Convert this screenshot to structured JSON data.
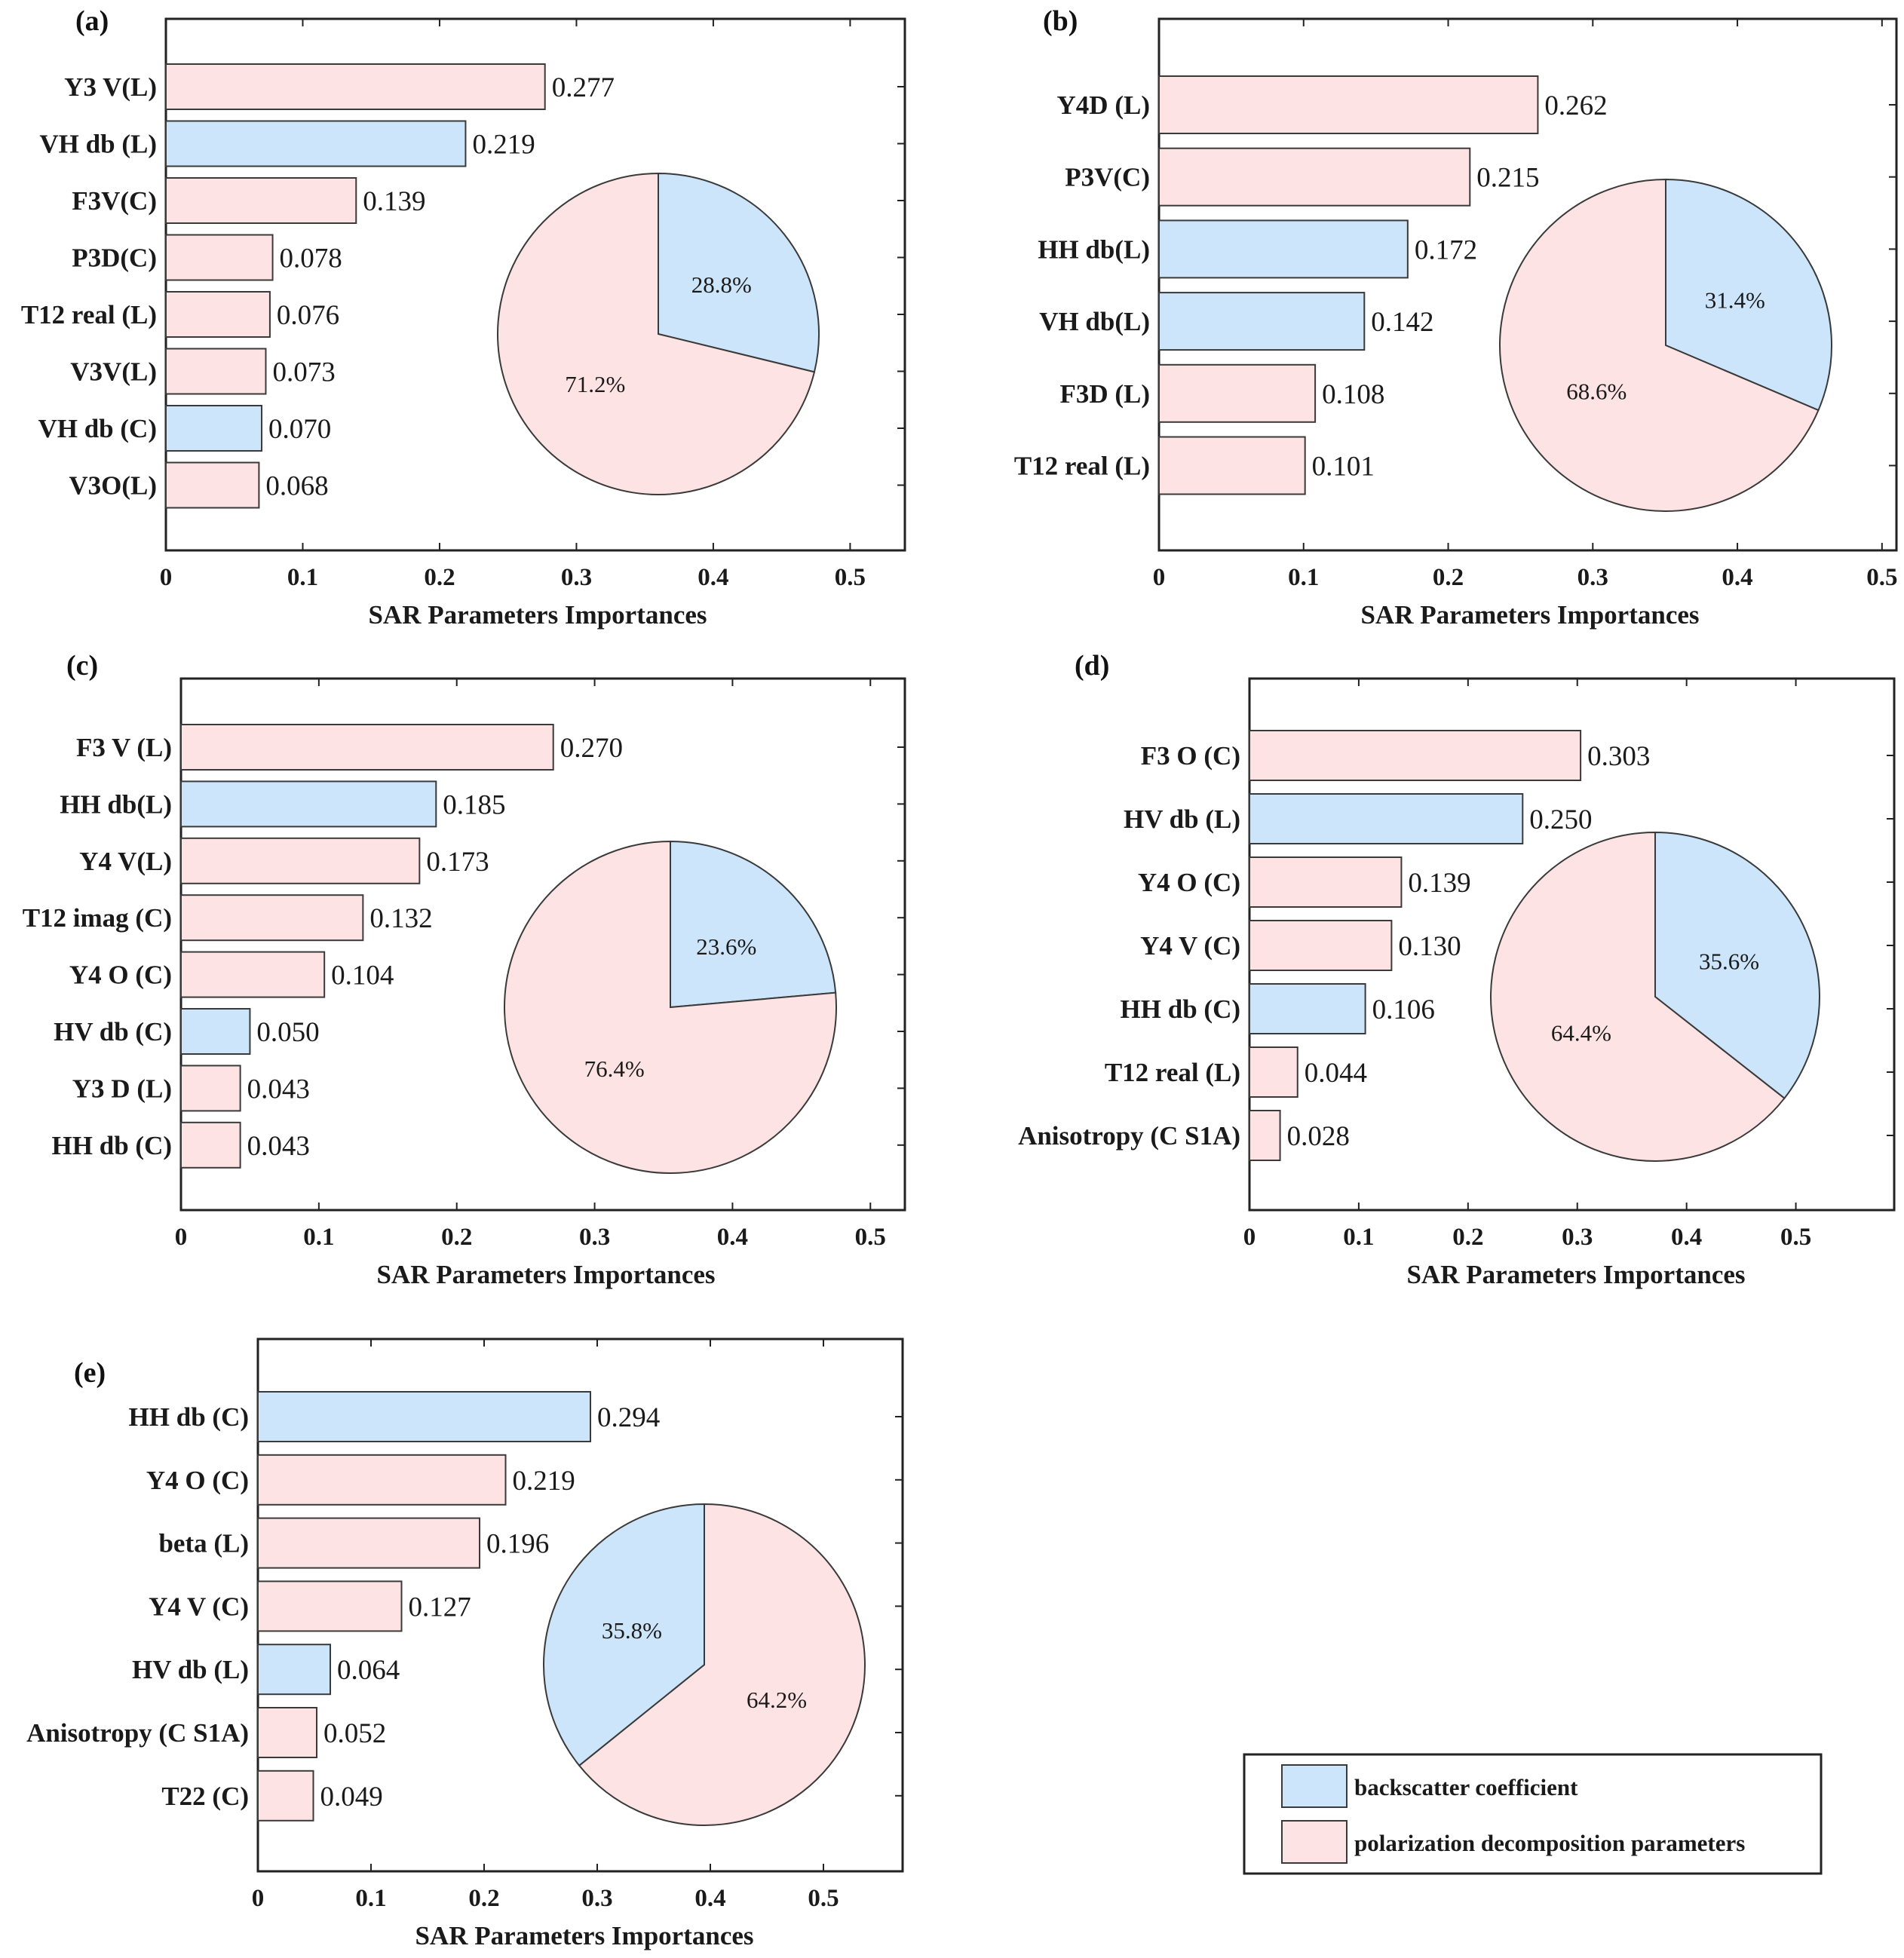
{
  "colors": {
    "backscatter": "#cce5fa",
    "polarization": "#fde3e3",
    "stroke": "#3a3a3a"
  },
  "legend": {
    "backscatter_label": "backscatter coefficient",
    "polarization_label": "polarization decomposition parameters"
  },
  "chart_data": [
    {
      "type": "bar",
      "panel": "(a)",
      "xlabel": "SAR Parameters Importances",
      "xlim": [
        0,
        0.54
      ],
      "xticks": [
        "0",
        "0.1",
        "0.2",
        "0.3",
        "0.4",
        "0.5"
      ],
      "bars": [
        {
          "label": "Y3 V(L)",
          "value": 0.277,
          "value_label": "0.277",
          "category": "polarization"
        },
        {
          "label": "VH db (L)",
          "value": 0.219,
          "value_label": "0.219",
          "category": "backscatter"
        },
        {
          "label": "F3V(C)",
          "value": 0.139,
          "value_label": "0.139",
          "category": "polarization"
        },
        {
          "label": "P3D(C)",
          "value": 0.078,
          "value_label": "0.078",
          "category": "polarization"
        },
        {
          "label": "T12 real (L)",
          "value": 0.076,
          "value_label": "0.076",
          "category": "polarization"
        },
        {
          "label": "V3V(L)",
          "value": 0.073,
          "value_label": "0.073",
          "category": "polarization"
        },
        {
          "label": "VH db (C)",
          "value": 0.07,
          "value_label": "0.070",
          "category": "backscatter"
        },
        {
          "label": "V3O(L)",
          "value": 0.068,
          "value_label": "0.068",
          "category": "polarization"
        }
      ],
      "pie": [
        {
          "category": "backscatter",
          "value": 28.8,
          "label": "28.8%"
        },
        {
          "category": "polarization",
          "value": 71.2,
          "label": "71.2%"
        }
      ]
    },
    {
      "type": "bar",
      "panel": "(b)",
      "xlabel": "SAR Parameters Importances",
      "xlim": [
        0,
        0.51
      ],
      "xticks": [
        "0",
        "0.1",
        "0.2",
        "0.3",
        "0.4",
        "0.5"
      ],
      "bars": [
        {
          "label": "Y4D (L)",
          "value": 0.262,
          "value_label": "0.262",
          "category": "polarization"
        },
        {
          "label": "P3V(C)",
          "value": 0.215,
          "value_label": "0.215",
          "category": "polarization"
        },
        {
          "label": "HH db(L)",
          "value": 0.172,
          "value_label": "0.172",
          "category": "backscatter"
        },
        {
          "label": "VH db(L)",
          "value": 0.142,
          "value_label": "0.142",
          "category": "backscatter"
        },
        {
          "label": "F3D (L)",
          "value": 0.108,
          "value_label": "0.108",
          "category": "polarization"
        },
        {
          "label": "T12 real (L)",
          "value": 0.101,
          "value_label": "0.101",
          "category": "polarization"
        }
      ],
      "pie": [
        {
          "category": "backscatter",
          "value": 31.4,
          "label": "31.4%"
        },
        {
          "category": "polarization",
          "value": 68.6,
          "label": "68.6%"
        }
      ]
    },
    {
      "type": "bar",
      "panel": "(c)",
      "xlabel": "SAR Parameters Importances",
      "xlim": [
        0,
        0.525
      ],
      "xticks": [
        "0",
        "0.1",
        "0.2",
        "0.3",
        "0.4",
        "0.5"
      ],
      "bars": [
        {
          "label": "F3 V (L)",
          "value": 0.27,
          "value_label": "0.270",
          "category": "polarization"
        },
        {
          "label": "HH db(L)",
          "value": 0.185,
          "value_label": "0.185",
          "category": "backscatter"
        },
        {
          "label": "Y4 V(L)",
          "value": 0.173,
          "value_label": "0.173",
          "category": "polarization"
        },
        {
          "label": "T12 imag (C)",
          "value": 0.132,
          "value_label": "0.132",
          "category": "polarization"
        },
        {
          "label": "Y4 O (C)",
          "value": 0.104,
          "value_label": "0.104",
          "category": "polarization"
        },
        {
          "label": "HV db (C)",
          "value": 0.05,
          "value_label": "0.050",
          "category": "backscatter"
        },
        {
          "label": "Y3 D (L)",
          "value": 0.043,
          "value_label": "0.043",
          "category": "polarization"
        },
        {
          "label": "HH db (C)",
          "value": 0.043,
          "value_label": "0.043",
          "category": "polarization"
        }
      ],
      "pie": [
        {
          "category": "backscatter",
          "value": 23.6,
          "label": "23.6%"
        },
        {
          "category": "polarization",
          "value": 76.4,
          "label": "76.4%"
        }
      ]
    },
    {
      "type": "bar",
      "panel": "(d)",
      "xlabel": "SAR Parameters Importances",
      "xlim": [
        0,
        0.59
      ],
      "xticks": [
        "0",
        "0.1",
        "0.2",
        "0.3",
        "0.4",
        "0.5"
      ],
      "bars": [
        {
          "label": "F3 O (C)",
          "value": 0.303,
          "value_label": "0.303",
          "category": "polarization"
        },
        {
          "label": "HV db (L)",
          "value": 0.25,
          "value_label": "0.250",
          "category": "backscatter"
        },
        {
          "label": "Y4 O (C)",
          "value": 0.139,
          "value_label": "0.139",
          "category": "polarization"
        },
        {
          "label": "Y4 V (C)",
          "value": 0.13,
          "value_label": "0.130",
          "category": "polarization"
        },
        {
          "label": "HH db (C)",
          "value": 0.106,
          "value_label": "0.106",
          "category": "backscatter"
        },
        {
          "label": "T12 real (L)",
          "value": 0.044,
          "value_label": "0.044",
          "category": "polarization"
        },
        {
          "label": "Anisotropy (C S1A)",
          "value": 0.028,
          "value_label": "0.028",
          "category": "polarization"
        }
      ],
      "pie": [
        {
          "category": "backscatter",
          "value": 35.6,
          "label": "35.6%"
        },
        {
          "category": "polarization",
          "value": 64.4,
          "label": "64.4%"
        }
      ]
    },
    {
      "type": "bar",
      "panel": "(e)",
      "xlabel": "SAR Parameters Importances",
      "xlim": [
        0,
        0.57
      ],
      "xticks": [
        "0",
        "0.1",
        "0.2",
        "0.3",
        "0.4",
        "0.5"
      ],
      "bars": [
        {
          "label": "HH db  (C)",
          "value": 0.294,
          "value_label": "0.294",
          "category": "backscatter"
        },
        {
          "label": "Y4 O (C)",
          "value": 0.219,
          "value_label": "0.219",
          "category": "polarization"
        },
        {
          "label": "beta (L)",
          "value": 0.196,
          "value_label": "0.196",
          "category": "polarization"
        },
        {
          "label": "Y4 V (C)",
          "value": 0.127,
          "value_label": "0.127",
          "category": "polarization"
        },
        {
          "label": "HV db (L)",
          "value": 0.064,
          "value_label": "0.064",
          "category": "backscatter"
        },
        {
          "label": "Anisotropy (C S1A)",
          "value": 0.052,
          "value_label": "0.052",
          "category": "polarization"
        },
        {
          "label": "T22 (C)",
          "value": 0.049,
          "value_label": "0.049",
          "category": "polarization"
        }
      ],
      "pie": [
        {
          "category": "polarization",
          "value": 64.2,
          "label": "64.2%"
        },
        {
          "category": "backscatter",
          "value": 35.8,
          "label": "35.8%"
        }
      ]
    }
  ]
}
